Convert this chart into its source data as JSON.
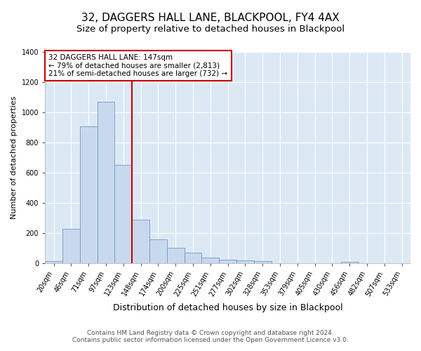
{
  "title": "32, DAGGERS HALL LANE, BLACKPOOL, FY4 4AX",
  "subtitle": "Size of property relative to detached houses in Blackpool",
  "xlabel": "Distribution of detached houses by size in Blackpool",
  "ylabel": "Number of detached properties",
  "bin_labels": [
    "20sqm",
    "46sqm",
    "71sqm",
    "97sqm",
    "123sqm",
    "148sqm",
    "174sqm",
    "200sqm",
    "225sqm",
    "251sqm",
    "277sqm",
    "302sqm",
    "328sqm",
    "353sqm",
    "379sqm",
    "405sqm",
    "430sqm",
    "456sqm",
    "482sqm",
    "507sqm",
    "533sqm"
  ],
  "bar_values": [
    15,
    230,
    910,
    1070,
    650,
    290,
    160,
    105,
    70,
    40,
    25,
    20,
    18,
    0,
    0,
    0,
    0,
    10,
    0,
    0,
    0
  ],
  "bar_color": "#c8d9ed",
  "bar_edge_color": "#7099c8",
  "vline_x_index": 4,
  "vline_color": "#cc0000",
  "annotation_title": "32 DAGGERS HALL LANE: 147sqm",
  "annotation_line1": "← 79% of detached houses are smaller (2,813)",
  "annotation_line2": "21% of semi-detached houses are larger (732) →",
  "annotation_box_facecolor": "#ffffff",
  "annotation_box_edgecolor": "#cc0000",
  "ylim": [
    0,
    1400
  ],
  "yticks": [
    0,
    200,
    400,
    600,
    800,
    1000,
    1200,
    1400
  ],
  "footer1": "Contains HM Land Registry data © Crown copyright and database right 2024.",
  "footer2": "Contains public sector information licensed under the Open Government Licence v3.0.",
  "fig_background_color": "#ffffff",
  "plot_background_color": "#dce9f5",
  "title_fontsize": 11,
  "subtitle_fontsize": 9.5,
  "xlabel_fontsize": 9,
  "ylabel_fontsize": 8,
  "tick_fontsize": 7,
  "footer_fontsize": 6.5,
  "annotation_fontsize": 7.5
}
